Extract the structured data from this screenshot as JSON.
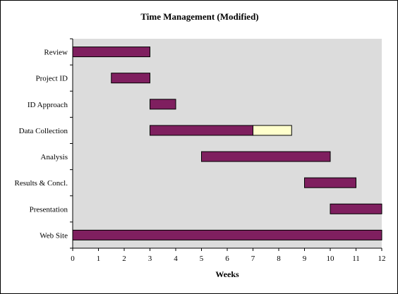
{
  "chart_data": {
    "type": "bar",
    "orientation": "horizontal-stacked",
    "title": "Time Management (Modified)",
    "xlabel": "Weeks",
    "ylabel": "",
    "xlim": [
      0,
      12
    ],
    "xticks": [
      0,
      1,
      2,
      3,
      4,
      5,
      6,
      7,
      8,
      9,
      10,
      11,
      12
    ],
    "grid": false,
    "legend": "none",
    "categories": [
      "Review",
      "Project ID",
      "ID Approach",
      "Data Collection",
      "Analysis",
      "Results & Concl.",
      "Presentation",
      "Web Site"
    ],
    "series": [
      {
        "color": "#7f1f5f",
        "bars": [
          [
            0,
            3
          ],
          [
            1.5,
            3
          ],
          [
            3,
            4
          ],
          [
            3,
            7
          ],
          [
            5,
            10
          ],
          [
            9,
            11
          ],
          [
            10,
            12
          ],
          [
            0,
            12
          ]
        ]
      },
      {
        "color": "#ffffcc",
        "bars": [
          null,
          null,
          null,
          [
            7,
            8.5
          ],
          null,
          null,
          null,
          null
        ]
      }
    ],
    "plot_background": "#dcdcdc"
  }
}
